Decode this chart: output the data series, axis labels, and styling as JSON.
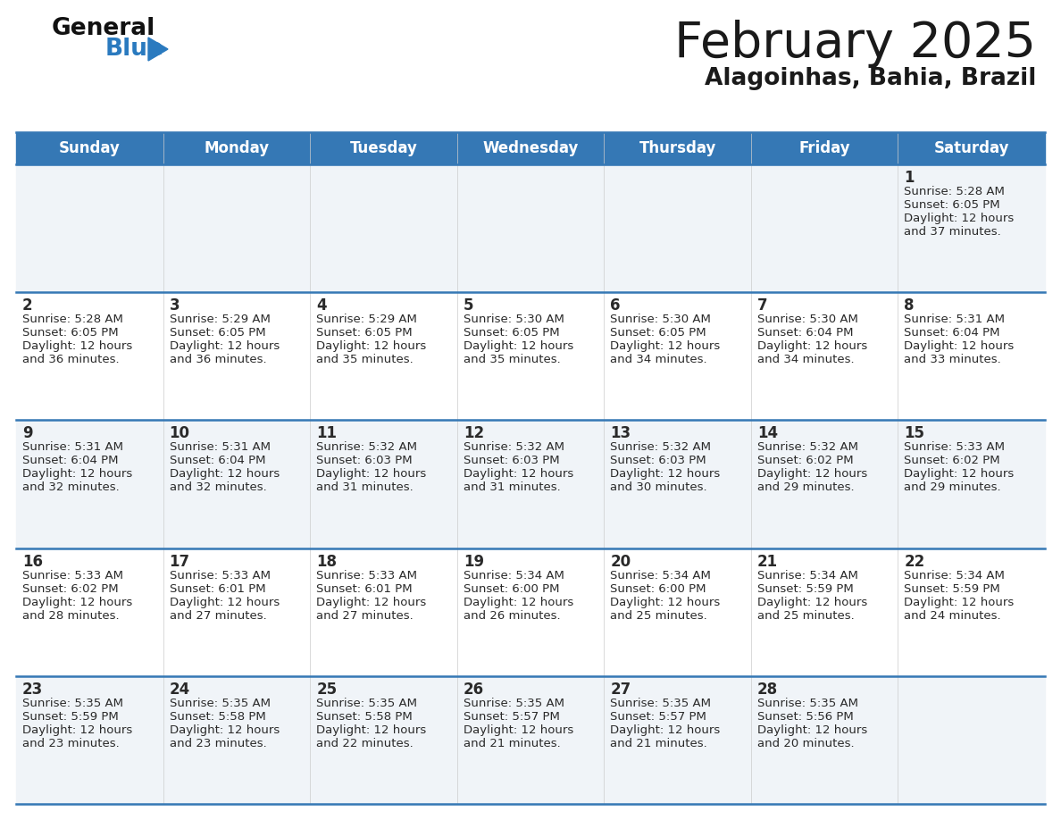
{
  "title": "February 2025",
  "subtitle": "Alagoinhas, Bahia, Brazil",
  "header_color": "#3578b5",
  "header_text_color": "#ffffff",
  "day_names": [
    "Sunday",
    "Monday",
    "Tuesday",
    "Wednesday",
    "Thursday",
    "Friday",
    "Saturday"
  ],
  "title_color": "#1a1a1a",
  "subtitle_color": "#1a1a1a",
  "cell_bg_odd": "#f0f4f8",
  "cell_bg_even": "#ffffff",
  "border_color": "#3578b5",
  "day_number_color": "#2a2a2a",
  "info_text_color": "#2a2a2a",
  "logo_general_color": "#111111",
  "logo_blue_color": "#2a7abf",
  "calendar_data": [
    [
      null,
      null,
      null,
      null,
      null,
      null,
      {
        "day": "1",
        "sunrise": "5:28 AM",
        "sunset": "6:05 PM",
        "daylight_line1": "Daylight: 12 hours",
        "daylight_line2": "and 37 minutes."
      }
    ],
    [
      {
        "day": "2",
        "sunrise": "5:28 AM",
        "sunset": "6:05 PM",
        "daylight_line1": "Daylight: 12 hours",
        "daylight_line2": "and 36 minutes."
      },
      {
        "day": "3",
        "sunrise": "5:29 AM",
        "sunset": "6:05 PM",
        "daylight_line1": "Daylight: 12 hours",
        "daylight_line2": "and 36 minutes."
      },
      {
        "day": "4",
        "sunrise": "5:29 AM",
        "sunset": "6:05 PM",
        "daylight_line1": "Daylight: 12 hours",
        "daylight_line2": "and 35 minutes."
      },
      {
        "day": "5",
        "sunrise": "5:30 AM",
        "sunset": "6:05 PM",
        "daylight_line1": "Daylight: 12 hours",
        "daylight_line2": "and 35 minutes."
      },
      {
        "day": "6",
        "sunrise": "5:30 AM",
        "sunset": "6:05 PM",
        "daylight_line1": "Daylight: 12 hours",
        "daylight_line2": "and 34 minutes."
      },
      {
        "day": "7",
        "sunrise": "5:30 AM",
        "sunset": "6:04 PM",
        "daylight_line1": "Daylight: 12 hours",
        "daylight_line2": "and 34 minutes."
      },
      {
        "day": "8",
        "sunrise": "5:31 AM",
        "sunset": "6:04 PM",
        "daylight_line1": "Daylight: 12 hours",
        "daylight_line2": "and 33 minutes."
      }
    ],
    [
      {
        "day": "9",
        "sunrise": "5:31 AM",
        "sunset": "6:04 PM",
        "daylight_line1": "Daylight: 12 hours",
        "daylight_line2": "and 32 minutes."
      },
      {
        "day": "10",
        "sunrise": "5:31 AM",
        "sunset": "6:04 PM",
        "daylight_line1": "Daylight: 12 hours",
        "daylight_line2": "and 32 minutes."
      },
      {
        "day": "11",
        "sunrise": "5:32 AM",
        "sunset": "6:03 PM",
        "daylight_line1": "Daylight: 12 hours",
        "daylight_line2": "and 31 minutes."
      },
      {
        "day": "12",
        "sunrise": "5:32 AM",
        "sunset": "6:03 PM",
        "daylight_line1": "Daylight: 12 hours",
        "daylight_line2": "and 31 minutes."
      },
      {
        "day": "13",
        "sunrise": "5:32 AM",
        "sunset": "6:03 PM",
        "daylight_line1": "Daylight: 12 hours",
        "daylight_line2": "and 30 minutes."
      },
      {
        "day": "14",
        "sunrise": "5:32 AM",
        "sunset": "6:02 PM",
        "daylight_line1": "Daylight: 12 hours",
        "daylight_line2": "and 29 minutes."
      },
      {
        "day": "15",
        "sunrise": "5:33 AM",
        "sunset": "6:02 PM",
        "daylight_line1": "Daylight: 12 hours",
        "daylight_line2": "and 29 minutes."
      }
    ],
    [
      {
        "day": "16",
        "sunrise": "5:33 AM",
        "sunset": "6:02 PM",
        "daylight_line1": "Daylight: 12 hours",
        "daylight_line2": "and 28 minutes."
      },
      {
        "day": "17",
        "sunrise": "5:33 AM",
        "sunset": "6:01 PM",
        "daylight_line1": "Daylight: 12 hours",
        "daylight_line2": "and 27 minutes."
      },
      {
        "day": "18",
        "sunrise": "5:33 AM",
        "sunset": "6:01 PM",
        "daylight_line1": "Daylight: 12 hours",
        "daylight_line2": "and 27 minutes."
      },
      {
        "day": "19",
        "sunrise": "5:34 AM",
        "sunset": "6:00 PM",
        "daylight_line1": "Daylight: 12 hours",
        "daylight_line2": "and 26 minutes."
      },
      {
        "day": "20",
        "sunrise": "5:34 AM",
        "sunset": "6:00 PM",
        "daylight_line1": "Daylight: 12 hours",
        "daylight_line2": "and 25 minutes."
      },
      {
        "day": "21",
        "sunrise": "5:34 AM",
        "sunset": "5:59 PM",
        "daylight_line1": "Daylight: 12 hours",
        "daylight_line2": "and 25 minutes."
      },
      {
        "day": "22",
        "sunrise": "5:34 AM",
        "sunset": "5:59 PM",
        "daylight_line1": "Daylight: 12 hours",
        "daylight_line2": "and 24 minutes."
      }
    ],
    [
      {
        "day": "23",
        "sunrise": "5:35 AM",
        "sunset": "5:59 PM",
        "daylight_line1": "Daylight: 12 hours",
        "daylight_line2": "and 23 minutes."
      },
      {
        "day": "24",
        "sunrise": "5:35 AM",
        "sunset": "5:58 PM",
        "daylight_line1": "Daylight: 12 hours",
        "daylight_line2": "and 23 minutes."
      },
      {
        "day": "25",
        "sunrise": "5:35 AM",
        "sunset": "5:58 PM",
        "daylight_line1": "Daylight: 12 hours",
        "daylight_line2": "and 22 minutes."
      },
      {
        "day": "26",
        "sunrise": "5:35 AM",
        "sunset": "5:57 PM",
        "daylight_line1": "Daylight: 12 hours",
        "daylight_line2": "and 21 minutes."
      },
      {
        "day": "27",
        "sunrise": "5:35 AM",
        "sunset": "5:57 PM",
        "daylight_line1": "Daylight: 12 hours",
        "daylight_line2": "and 21 minutes."
      },
      {
        "day": "28",
        "sunrise": "5:35 AM",
        "sunset": "5:56 PM",
        "daylight_line1": "Daylight: 12 hours",
        "daylight_line2": "and 20 minutes."
      },
      null
    ]
  ]
}
